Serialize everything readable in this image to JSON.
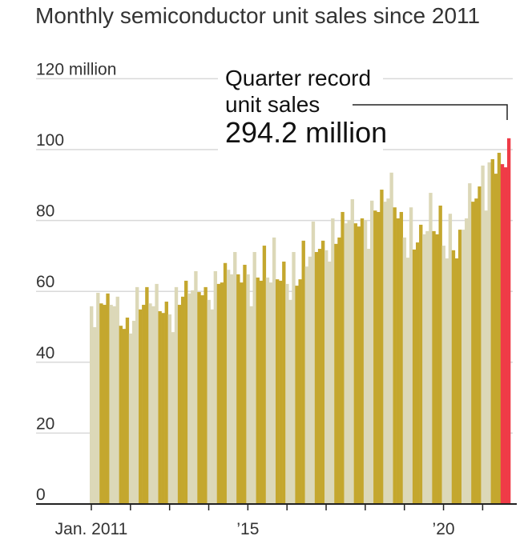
{
  "chart_data": {
    "type": "bar",
    "title": "Monthly semiconductor unit sales since 2011",
    "ylabel": "",
    "xlabel": "",
    "y_unit_label": "120 million",
    "ylim": [
      0,
      120
    ],
    "yticks": [
      0,
      20,
      40,
      60,
      80,
      100,
      120
    ],
    "ytick_labels": [
      "0",
      "20",
      "40",
      "60",
      "80",
      "100",
      "120 million"
    ],
    "x_start": "2011-01",
    "x_end": "2021-09",
    "xtick_labels": [
      {
        "month_index": 0,
        "label": "Jan. 2011"
      },
      {
        "month_index": 48,
        "label": "’15"
      },
      {
        "month_index": 108,
        "label": "’20"
      }
    ],
    "grid": true,
    "colors": {
      "quarter_a": "#dcd8b8",
      "quarter_b": "#c4a72e",
      "highlight": "#ef3b47",
      "grid": "#d9d9d9",
      "axis": "#222222"
    },
    "coloring": "alternating by quarter; last quarter highlighted",
    "values": [
      55.8,
      49.9,
      59.6,
      56.6,
      56.2,
      59.4,
      56.2,
      55.8,
      58.5,
      50.3,
      49.4,
      52.6,
      48.1,
      51.7,
      61.2,
      54.9,
      56.2,
      61.2,
      56.6,
      55.8,
      62.1,
      54.4,
      53.9,
      57.1,
      53.5,
      48.5,
      61.2,
      56.2,
      58.5,
      63.0,
      59.4,
      60.3,
      65.7,
      59.8,
      58.9,
      61.2,
      57.6,
      54.9,
      65.7,
      62.1,
      62.5,
      68.0,
      66.1,
      64.8,
      71.1,
      64.8,
      62.5,
      67.5,
      64.8,
      55.8,
      71.1,
      63.9,
      63.0,
      72.9,
      63.9,
      62.5,
      75.2,
      63.4,
      63.0,
      68.4,
      62.1,
      57.6,
      71.1,
      61.6,
      63.4,
      74.3,
      67.0,
      69.8,
      79.7,
      71.1,
      72.0,
      74.3,
      71.6,
      68.4,
      80.6,
      73.4,
      75.2,
      82.4,
      79.2,
      80.1,
      86.0,
      79.2,
      78.3,
      80.6,
      80.1,
      72.0,
      85.6,
      82.8,
      82.4,
      88.7,
      85.3,
      86.2,
      93.5,
      83.7,
      80.6,
      82.4,
      75.2,
      69.5,
      83.7,
      71.8,
      73.8,
      78.8,
      76.1,
      77.0,
      87.8,
      77.0,
      76.1,
      84.2,
      72.9,
      69.3,
      81.9,
      71.6,
      69.3,
      77.4,
      77.4,
      80.6,
      90.5,
      85.3,
      86.2,
      89.6,
      95.5,
      82.8,
      96.4,
      97.3,
      93.2,
      99.1,
      95.9,
      95.0,
      103.2
    ],
    "annotation": {
      "line1": "Quarter record",
      "line2": "unit sales",
      "value": "294.2 million"
    }
  }
}
